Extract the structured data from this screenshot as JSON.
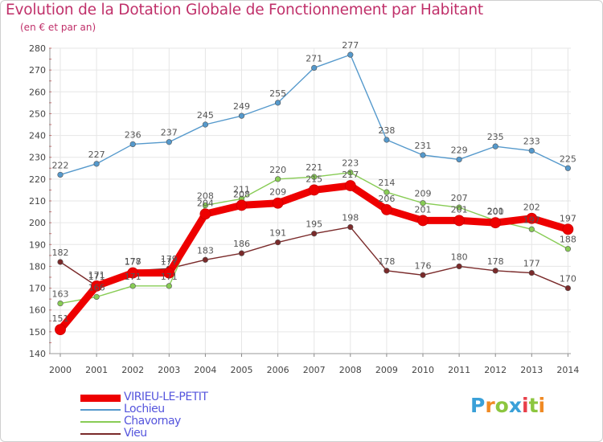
{
  "header": {
    "title": "Evolution de la Dotation Globale de Fonctionnement par Habitant",
    "subtitle": "(en € et par an)"
  },
  "chart_data": {
    "type": "line",
    "title": "Evolution de la Dotation Globale de Fonctionnement par Habitant",
    "subtitle": "(en € et par an)",
    "xlabel": "",
    "ylabel": "",
    "ylim": [
      140,
      280
    ],
    "y_ticks": [
      140,
      150,
      160,
      170,
      180,
      190,
      200,
      210,
      220,
      230,
      240,
      250,
      260,
      270,
      280
    ],
    "grid": true,
    "categories": [
      "2000",
      "2001",
      "2002",
      "2003",
      "2004",
      "2005",
      "2006",
      "2007",
      "2008",
      "2009",
      "2010",
      "2011",
      "2012",
      "2013",
      "2014"
    ],
    "series": [
      {
        "name": "Vieu",
        "color": "#7a2a2a",
        "values": [
          182,
          171,
          178,
          179,
          183,
          186,
          191,
          195,
          198,
          178,
          176,
          180,
          178,
          177,
          170
        ]
      },
      {
        "name": "Chavornay",
        "color": "#88cc55",
        "values": [
          163,
          166,
          171,
          171,
          208,
          211,
          220,
          221,
          223,
          214,
          209,
          207,
          201,
          197,
          188
        ]
      },
      {
        "name": "Lochieu",
        "color": "#5599cc",
        "values": [
          222,
          227,
          236,
          237,
          245,
          249,
          255,
          271,
          277,
          238,
          231,
          229,
          235,
          233,
          225
        ]
      },
      {
        "name": "VIRIEU-LE-PETIT",
        "color": "#ee0000",
        "values": [
          151,
          171,
          177,
          177,
          204,
          208,
          209,
          215,
          217,
          206,
          201,
          201,
          200,
          202,
          197
        ]
      }
    ],
    "legend_position": "bottom-left"
  },
  "legend": [
    {
      "name": "VIRIEU-LE-PETIT",
      "color": "#ee0000",
      "thickness": 9
    },
    {
      "name": "Lochieu",
      "color": "#5599cc",
      "thickness": 2
    },
    {
      "name": "Chavornay",
      "color": "#88cc55",
      "thickness": 2
    },
    {
      "name": "Vieu",
      "color": "#7a2a2a",
      "thickness": 2
    }
  ],
  "logo": {
    "letters": [
      "P",
      "r",
      "o",
      "x",
      "i",
      "t",
      "i"
    ],
    "colors": [
      "#3aa0d8",
      "#f08a24",
      "#8cc63f",
      "#3aa0d8",
      "#e8404a",
      "#8cc63f",
      "#f08a24"
    ]
  }
}
